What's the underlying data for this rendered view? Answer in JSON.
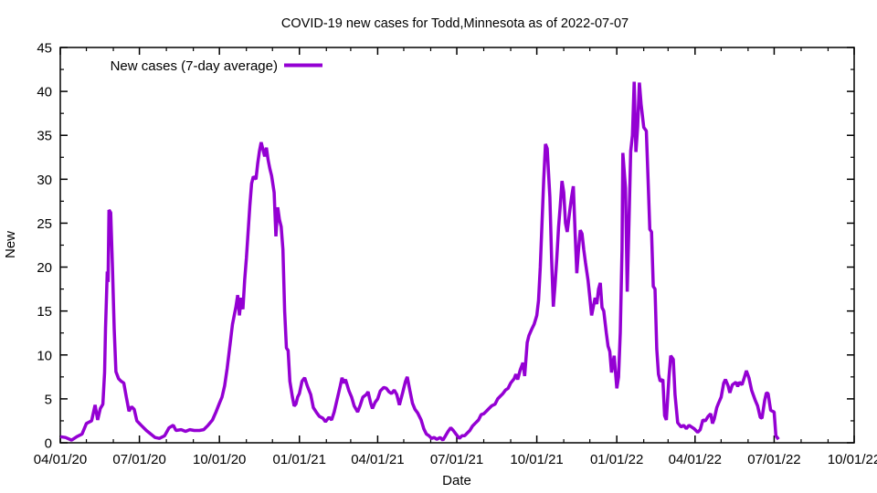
{
  "chart_data": {
    "type": "line",
    "title": "COVID-19 new cases for Todd,Minnesota as of 2022-07-07",
    "xlabel": "Date",
    "ylabel": "New",
    "legend": "New cases (7-day average)",
    "line_color": "#9400D3",
    "grid": "off",
    "legend_position": "top-left-inside",
    "ylim": [
      0,
      45
    ],
    "y_major_step": 5,
    "y_minor_step": 2.5,
    "x_unit": "days since 2020-04-01",
    "x_domain_days": 913,
    "x_ticks": [
      {
        "t": 0,
        "label": "04/01/20"
      },
      {
        "t": 91,
        "label": "07/01/20"
      },
      {
        "t": 183,
        "label": "10/01/20"
      },
      {
        "t": 275,
        "label": "01/01/21"
      },
      {
        "t": 365,
        "label": "04/01/21"
      },
      {
        "t": 456,
        "label": "07/01/21"
      },
      {
        "t": 548,
        "label": "10/01/21"
      },
      {
        "t": 640,
        "label": "01/01/22"
      },
      {
        "t": 730,
        "label": "04/01/22"
      },
      {
        "t": 821,
        "label": "07/01/22"
      },
      {
        "t": 913,
        "label": "10/01/22"
      }
    ],
    "x_minor_ticks": [
      30,
      61,
      122,
      153,
      214,
      244,
      306,
      334,
      395,
      426,
      487,
      518,
      579,
      609,
      671,
      699,
      760,
      791,
      852,
      883
    ],
    "points": [
      [
        0,
        0.7
      ],
      [
        6,
        0.6
      ],
      [
        13,
        0.3
      ],
      [
        19,
        0.7
      ],
      [
        25,
        1.0
      ],
      [
        30,
        2.2
      ],
      [
        36,
        2.5
      ],
      [
        40,
        4.3
      ],
      [
        43,
        2.6
      ],
      [
        46,
        3.9
      ],
      [
        49,
        4.4
      ],
      [
        51,
        8.0
      ],
      [
        52,
        13.0
      ],
      [
        54,
        19.5
      ],
      [
        55,
        18.3
      ],
      [
        56,
        26.5
      ],
      [
        58,
        26.2
      ],
      [
        60,
        20.0
      ],
      [
        62,
        13.0
      ],
      [
        64,
        8.1
      ],
      [
        67,
        7.3
      ],
      [
        70,
        7.0
      ],
      [
        73,
        6.8
      ],
      [
        76,
        5.2
      ],
      [
        79,
        3.6
      ],
      [
        82,
        4.1
      ],
      [
        85,
        3.8
      ],
      [
        88,
        2.5
      ],
      [
        93,
        2.0
      ],
      [
        99,
        1.4
      ],
      [
        104,
        1.0
      ],
      [
        109,
        0.6
      ],
      [
        114,
        0.5
      ],
      [
        120,
        0.8
      ],
      [
        125,
        1.7
      ],
      [
        130,
        2.0
      ],
      [
        133,
        1.4
      ],
      [
        139,
        1.5
      ],
      [
        144,
        1.3
      ],
      [
        149,
        1.5
      ],
      [
        154,
        1.4
      ],
      [
        160,
        1.4
      ],
      [
        165,
        1.5
      ],
      [
        170,
        2.0
      ],
      [
        175,
        2.6
      ],
      [
        179,
        3.5
      ],
      [
        183,
        4.5
      ],
      [
        186,
        5.2
      ],
      [
        189,
        6.5
      ],
      [
        192,
        8.5
      ],
      [
        195,
        11.0
      ],
      [
        198,
        13.5
      ],
      [
        202,
        15.5
      ],
      [
        204,
        16.8
      ],
      [
        206,
        14.5
      ],
      [
        208,
        16.5
      ],
      [
        210,
        15.2
      ],
      [
        212,
        18.5
      ],
      [
        214,
        21.0
      ],
      [
        216,
        24.0
      ],
      [
        218,
        27.0
      ],
      [
        220,
        29.5
      ],
      [
        222,
        30.3
      ],
      [
        225,
        30.0
      ],
      [
        227,
        31.8
      ],
      [
        229,
        33.2
      ],
      [
        231,
        34.2
      ],
      [
        233,
        33.4
      ],
      [
        235,
        32.6
      ],
      [
        237,
        33.6
      ],
      [
        239,
        32.2
      ],
      [
        241,
        31.2
      ],
      [
        243,
        30.4
      ],
      [
        246,
        28.5
      ],
      [
        248,
        23.5
      ],
      [
        250,
        26.8
      ],
      [
        252,
        25.4
      ],
      [
        254,
        24.6
      ],
      [
        256,
        22.0
      ],
      [
        258,
        15.0
      ],
      [
        260,
        10.8
      ],
      [
        262,
        10.5
      ],
      [
        264,
        7.0
      ],
      [
        267,
        5.2
      ],
      [
        269,
        4.2
      ],
      [
        271,
        4.4
      ],
      [
        273,
        5.2
      ],
      [
        275,
        5.6
      ],
      [
        278,
        7.0
      ],
      [
        281,
        7.4
      ],
      [
        284,
        6.5
      ],
      [
        288,
        5.5
      ],
      [
        291,
        4.0
      ],
      [
        295,
        3.4
      ],
      [
        298,
        3.0
      ],
      [
        302,
        2.8
      ],
      [
        305,
        2.4
      ],
      [
        309,
        2.9
      ],
      [
        312,
        2.6
      ],
      [
        315,
        3.5
      ],
      [
        319,
        5.2
      ],
      [
        322,
        6.5
      ],
      [
        324,
        7.4
      ],
      [
        326,
        6.8
      ],
      [
        328,
        7.2
      ],
      [
        332,
        5.9
      ],
      [
        335,
        5.2
      ],
      [
        338,
        4.2
      ],
      [
        342,
        3.5
      ],
      [
        345,
        4.3
      ],
      [
        348,
        5.2
      ],
      [
        352,
        5.5
      ],
      [
        354,
        5.8
      ],
      [
        357,
        4.5
      ],
      [
        359,
        3.9
      ],
      [
        362,
        4.6
      ],
      [
        365,
        5.0
      ],
      [
        368,
        5.9
      ],
      [
        372,
        6.3
      ],
      [
        375,
        6.2
      ],
      [
        378,
        5.8
      ],
      [
        381,
        5.6
      ],
      [
        384,
        6.0
      ],
      [
        387,
        5.5
      ],
      [
        390,
        4.3
      ],
      [
        394,
        5.8
      ],
      [
        397,
        7.0
      ],
      [
        399,
        7.5
      ],
      [
        402,
        6.0
      ],
      [
        405,
        4.5
      ],
      [
        408,
        3.8
      ],
      [
        411,
        3.4
      ],
      [
        415,
        2.6
      ],
      [
        418,
        1.6
      ],
      [
        421,
        1.0
      ],
      [
        424,
        0.8
      ],
      [
        427,
        0.5
      ],
      [
        430,
        0.6
      ],
      [
        433,
        0.4
      ],
      [
        437,
        0.6
      ],
      [
        440,
        0.3
      ],
      [
        443,
        0.8
      ],
      [
        446,
        1.3
      ],
      [
        449,
        1.7
      ],
      [
        452,
        1.4
      ],
      [
        455,
        1.0
      ],
      [
        459,
        0.5
      ],
      [
        462,
        0.8
      ],
      [
        465,
        0.8
      ],
      [
        468,
        1.1
      ],
      [
        471,
        1.4
      ],
      [
        474,
        1.9
      ],
      [
        477,
        2.2
      ],
      [
        481,
        2.6
      ],
      [
        484,
        3.2
      ],
      [
        487,
        3.3
      ],
      [
        490,
        3.6
      ],
      [
        493,
        3.9
      ],
      [
        496,
        4.2
      ],
      [
        500,
        4.4
      ],
      [
        503,
        5.0
      ],
      [
        506,
        5.3
      ],
      [
        509,
        5.6
      ],
      [
        512,
        6.0
      ],
      [
        515,
        6.2
      ],
      [
        518,
        6.8
      ],
      [
        522,
        7.3
      ],
      [
        524,
        7.8
      ],
      [
        526,
        7.2
      ],
      [
        529,
        8.3
      ],
      [
        532,
        9.1
      ],
      [
        534,
        7.6
      ],
      [
        537,
        11.4
      ],
      [
        539,
        12.2
      ],
      [
        542,
        12.9
      ],
      [
        545,
        13.5
      ],
      [
        548,
        14.5
      ],
      [
        550,
        16.2
      ],
      [
        552,
        20.0
      ],
      [
        554,
        25.0
      ],
      [
        556,
        30.0
      ],
      [
        558,
        34.0
      ],
      [
        560,
        33.5
      ],
      [
        563,
        28.0
      ],
      [
        565,
        21.0
      ],
      [
        567,
        15.5
      ],
      [
        569,
        18.0
      ],
      [
        571,
        21.0
      ],
      [
        573,
        24.5
      ],
      [
        575,
        27.0
      ],
      [
        577,
        29.8
      ],
      [
        579,
        28.5
      ],
      [
        581,
        25.0
      ],
      [
        583,
        24.0
      ],
      [
        586,
        26.5
      ],
      [
        588,
        28.0
      ],
      [
        590,
        29.2
      ],
      [
        592,
        24.0
      ],
      [
        594,
        19.3
      ],
      [
        596,
        22.0
      ],
      [
        598,
        24.2
      ],
      [
        600,
        23.8
      ],
      [
        602,
        22.0
      ],
      [
        604,
        20.5
      ],
      [
        607,
        18.5
      ],
      [
        609,
        16.5
      ],
      [
        611,
        14.5
      ],
      [
        613,
        15.5
      ],
      [
        615,
        16.5
      ],
      [
        617,
        15.8
      ],
      [
        619,
        17.5
      ],
      [
        621,
        18.2
      ],
      [
        623,
        15.4
      ],
      [
        625,
        15.0
      ],
      [
        628,
        12.5
      ],
      [
        630,
        11.0
      ],
      [
        632,
        10.4
      ],
      [
        634,
        8.0
      ],
      [
        637,
        9.9
      ],
      [
        640,
        6.2
      ],
      [
        642,
        7.5
      ],
      [
        644,
        12.6
      ],
      [
        646,
        22.0
      ],
      [
        647,
        33.0
      ],
      [
        650,
        29.0
      ],
      [
        652,
        17.2
      ],
      [
        654,
        25.0
      ],
      [
        656,
        33.2
      ],
      [
        658,
        35.0
      ],
      [
        660,
        41.1
      ],
      [
        662,
        33.1
      ],
      [
        664,
        36.0
      ],
      [
        666,
        41.0
      ],
      [
        668,
        38.5
      ],
      [
        671,
        35.9
      ],
      [
        674,
        35.5
      ],
      [
        676,
        30.0
      ],
      [
        678,
        24.3
      ],
      [
        680,
        24.0
      ],
      [
        682,
        17.8
      ],
      [
        684,
        17.5
      ],
      [
        686,
        10.7
      ],
      [
        688,
        7.8
      ],
      [
        690,
        7.0
      ],
      [
        693,
        7.2
      ],
      [
        695,
        3.1
      ],
      [
        697,
        2.6
      ],
      [
        700,
        7.5
      ],
      [
        702,
        9.9
      ],
      [
        705,
        9.5
      ],
      [
        707,
        5.5
      ],
      [
        710,
        2.3
      ],
      [
        714,
        1.8
      ],
      [
        717,
        2.0
      ],
      [
        720,
        1.6
      ],
      [
        723,
        2.0
      ],
      [
        726,
        1.8
      ],
      [
        729,
        1.6
      ],
      [
        733,
        1.2
      ],
      [
        736,
        1.5
      ],
      [
        739,
        2.6
      ],
      [
        742,
        2.5
      ],
      [
        745,
        3.0
      ],
      [
        748,
        3.3
      ],
      [
        750,
        2.2
      ],
      [
        752,
        2.7
      ],
      [
        755,
        4.0
      ],
      [
        757,
        4.5
      ],
      [
        760,
        5.2
      ],
      [
        763,
        6.8
      ],
      [
        765,
        7.2
      ],
      [
        768,
        6.5
      ],
      [
        770,
        5.7
      ],
      [
        773,
        6.6
      ],
      [
        777,
        6.9
      ],
      [
        779,
        6.4
      ],
      [
        781,
        6.9
      ],
      [
        784,
        6.6
      ],
      [
        786,
        7.2
      ],
      [
        789,
        8.2
      ],
      [
        792,
        7.4
      ],
      [
        795,
        6.0
      ],
      [
        799,
        4.9
      ],
      [
        802,
        4.2
      ],
      [
        805,
        2.9
      ],
      [
        807,
        2.8
      ],
      [
        810,
        4.8
      ],
      [
        812,
        5.7
      ],
      [
        814,
        5.6
      ],
      [
        817,
        3.7
      ],
      [
        821,
        3.5
      ],
      [
        823,
        0.8
      ],
      [
        826,
        0.4
      ]
    ]
  }
}
